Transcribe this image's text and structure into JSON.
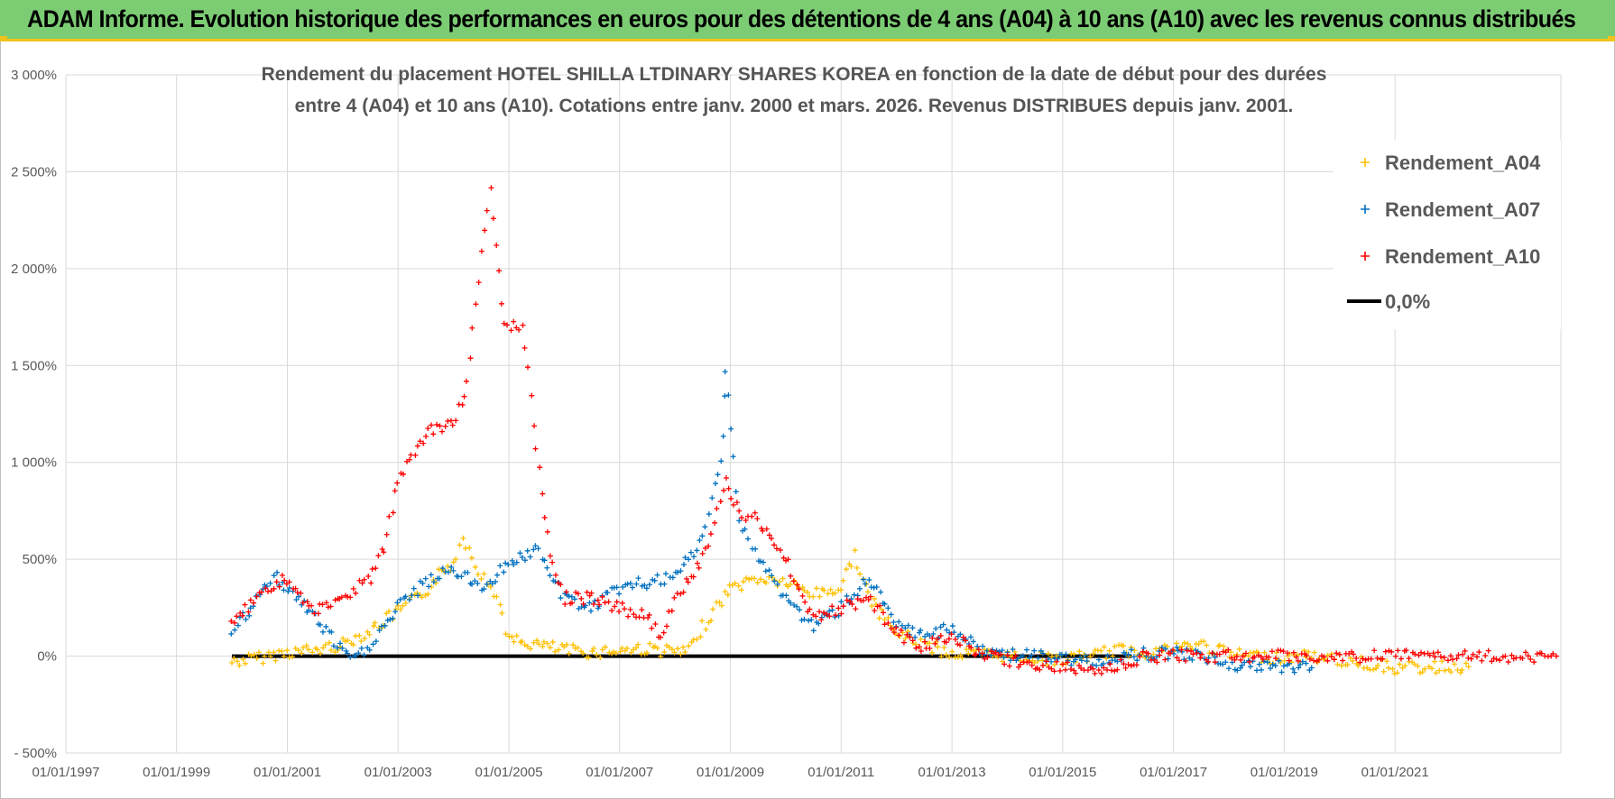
{
  "header": {
    "title": "ADAM Informe. Evolution historique des performances en euros pour des détentions de 4 ans (A04) à 10 ans (A10) avec les revenus connus distribués"
  },
  "colors": {
    "header_bg": "#7ccc74",
    "header_accent": "#f2c21a",
    "A04": "#ffc000",
    "A07": "#0070c0",
    "A10": "#ff0000",
    "zero": "#000000",
    "grid": "#d9d9d9"
  },
  "chart_data": {
    "type": "scatter",
    "title_lines": [
      "Rendement du placement HOTEL SHILLA LTDINARY SHARES KOREA en fonction de la date de début pour des durées",
      "entre 4 (A04) et 10 ans (A10).  Cotations entre janv. 2000 et mars. 2026.  Revenus DISTRIBUES depuis janv. 2001."
    ],
    "x_axis": {
      "type": "date",
      "range": [
        "1997-01-01",
        "2023-12-31"
      ],
      "tick_labels": [
        "01/01/1997",
        "01/01/1999",
        "01/01/2001",
        "01/01/2003",
        "01/01/2005",
        "01/01/2007",
        "01/01/2009",
        "01/01/2011",
        "01/01/2013",
        "01/01/2015",
        "01/01/2017",
        "01/01/2019",
        "01/01/2021"
      ]
    },
    "y_axis": {
      "unit": "%",
      "range": [
        -500,
        3000
      ],
      "tick_values": [
        -500,
        0,
        500,
        1000,
        1500,
        2000,
        2500,
        3000
      ],
      "tick_labels": [
        "- 500%",
        "0%",
        "500%",
        "1 000%",
        "1 500%",
        "2 000%",
        "2 500%",
        "3 000%"
      ]
    },
    "grid": true,
    "legend_position": "top-right",
    "series": [
      {
        "name": "Rendement_A04",
        "marker": "+",
        "color": "#ffc000",
        "points": [
          [
            "2000-01-01",
            -30
          ],
          [
            "2000-07-01",
            -10
          ],
          [
            "2001-01-01",
            20
          ],
          [
            "2001-07-01",
            30
          ],
          [
            "2002-01-01",
            60
          ],
          [
            "2002-07-01",
            130
          ],
          [
            "2003-01-01",
            230
          ],
          [
            "2003-07-01",
            330
          ],
          [
            "2003-10-01",
            420
          ],
          [
            "2004-01-01",
            480
          ],
          [
            "2004-03-01",
            620
          ],
          [
            "2004-07-01",
            420
          ],
          [
            "2004-11-01",
            280
          ],
          [
            "2005-01-01",
            80
          ],
          [
            "2005-07-01",
            60
          ],
          [
            "2006-01-01",
            30
          ],
          [
            "2006-07-01",
            20
          ],
          [
            "2007-01-01",
            30
          ],
          [
            "2007-07-01",
            40
          ],
          [
            "2008-01-01",
            20
          ],
          [
            "2008-04-01",
            20
          ],
          [
            "2008-07-01",
            150
          ],
          [
            "2009-01-01",
            350
          ],
          [
            "2009-07-01",
            400
          ],
          [
            "2010-01-01",
            380
          ],
          [
            "2010-07-01",
            320
          ],
          [
            "2011-01-01",
            350
          ],
          [
            "2011-04-01",
            530
          ],
          [
            "2011-07-01",
            300
          ],
          [
            "2012-01-01",
            120
          ],
          [
            "2012-07-01",
            60
          ],
          [
            "2013-01-01",
            10
          ],
          [
            "2013-07-01",
            10
          ],
          [
            "2014-01-01",
            0
          ],
          [
            "2014-07-01",
            -10
          ],
          [
            "2015-01-01",
            -20
          ],
          [
            "2015-07-01",
            0
          ],
          [
            "2016-01-01",
            30
          ],
          [
            "2016-07-01",
            20
          ],
          [
            "2017-01-01",
            40
          ],
          [
            "2017-07-01",
            60
          ],
          [
            "2018-01-01",
            10
          ],
          [
            "2018-07-01",
            0
          ],
          [
            "2019-01-01",
            -10
          ],
          [
            "2019-07-01",
            0
          ],
          [
            "2020-01-01",
            -20
          ],
          [
            "2020-07-01",
            -40
          ],
          [
            "2021-01-01",
            -60
          ],
          [
            "2021-07-01",
            -60
          ],
          [
            "2022-05-01",
            -55
          ]
        ]
      },
      {
        "name": "Rendement_A07",
        "marker": "+",
        "color": "#0070c0",
        "points": [
          [
            "2000-01-01",
            120
          ],
          [
            "2000-07-01",
            300
          ],
          [
            "2000-10-01",
            420
          ],
          [
            "2001-01-01",
            350
          ],
          [
            "2001-07-01",
            200
          ],
          [
            "2002-01-01",
            20
          ],
          [
            "2002-04-01",
            -20
          ],
          [
            "2002-07-01",
            60
          ],
          [
            "2003-01-01",
            250
          ],
          [
            "2003-07-01",
            380
          ],
          [
            "2004-01-01",
            450
          ],
          [
            "2004-07-01",
            350
          ],
          [
            "2005-01-01",
            480
          ],
          [
            "2005-07-01",
            550
          ],
          [
            "2006-01-01",
            300
          ],
          [
            "2006-07-01",
            250
          ],
          [
            "2007-01-01",
            350
          ],
          [
            "2007-07-01",
            380
          ],
          [
            "2008-01-01",
            400
          ],
          [
            "2008-07-01",
            600
          ],
          [
            "2008-11-01",
            1000
          ],
          [
            "2008-12-01",
            1500
          ],
          [
            "2009-03-01",
            700
          ],
          [
            "2009-07-01",
            500
          ],
          [
            "2010-01-01",
            300
          ],
          [
            "2010-07-01",
            150
          ],
          [
            "2011-01-01",
            250
          ],
          [
            "2011-07-01",
            400
          ],
          [
            "2012-01-01",
            150
          ],
          [
            "2012-07-01",
            100
          ],
          [
            "2013-01-01",
            150
          ],
          [
            "2013-07-01",
            30
          ],
          [
            "2014-01-01",
            10
          ],
          [
            "2014-07-01",
            0
          ],
          [
            "2015-01-01",
            -20
          ],
          [
            "2015-07-01",
            -30
          ],
          [
            "2016-01-01",
            0
          ],
          [
            "2016-07-01",
            10
          ],
          [
            "2017-01-01",
            20
          ],
          [
            "2017-07-01",
            0
          ],
          [
            "2018-01-01",
            -40
          ],
          [
            "2018-07-01",
            -60
          ],
          [
            "2019-01-01",
            -50
          ],
          [
            "2019-07-01",
            -60
          ]
        ]
      },
      {
        "name": "Rendement_A10",
        "marker": "+",
        "color": "#ff0000",
        "points": [
          [
            "2000-01-01",
            150
          ],
          [
            "2000-07-01",
            330
          ],
          [
            "2001-01-01",
            400
          ],
          [
            "2001-07-01",
            220
          ],
          [
            "2002-01-01",
            300
          ],
          [
            "2002-07-01",
            400
          ],
          [
            "2002-10-01",
            550
          ],
          [
            "2003-01-01",
            900
          ],
          [
            "2003-07-01",
            1150
          ],
          [
            "2004-01-01",
            1200
          ],
          [
            "2004-04-01",
            1400
          ],
          [
            "2004-07-01",
            2100
          ],
          [
            "2004-09-01",
            2400
          ],
          [
            "2004-12-01",
            1700
          ],
          [
            "2005-04-01",
            1700
          ],
          [
            "2005-07-01",
            1100
          ],
          [
            "2005-10-01",
            500
          ],
          [
            "2006-01-01",
            300
          ],
          [
            "2006-07-01",
            300
          ],
          [
            "2007-01-01",
            250
          ],
          [
            "2007-07-01",
            200
          ],
          [
            "2007-10-01",
            100
          ],
          [
            "2008-01-01",
            300
          ],
          [
            "2008-07-01",
            500
          ],
          [
            "2008-12-01",
            900
          ],
          [
            "2009-03-01",
            750
          ],
          [
            "2009-07-01",
            700
          ],
          [
            "2010-01-01",
            500
          ],
          [
            "2010-07-01",
            200
          ],
          [
            "2011-01-01",
            250
          ],
          [
            "2011-07-01",
            300
          ],
          [
            "2012-01-01",
            120
          ],
          [
            "2012-07-01",
            50
          ],
          [
            "2013-01-01",
            100
          ],
          [
            "2013-07-01",
            20
          ],
          [
            "2014-01-01",
            -20
          ],
          [
            "2014-07-01",
            -40
          ],
          [
            "2015-01-01",
            -60
          ],
          [
            "2015-07-01",
            -70
          ],
          [
            "2016-01-01",
            -50
          ],
          [
            "2016-07-01",
            0
          ],
          [
            "2017-01-01",
            0
          ],
          [
            "2018-01-01",
            0
          ],
          [
            "2019-01-01",
            0
          ],
          [
            "2020-01-01",
            0
          ],
          [
            "2021-01-01",
            0
          ],
          [
            "2022-01-01",
            0
          ],
          [
            "2023-01-01",
            0
          ],
          [
            "2023-12-01",
            0
          ]
        ]
      }
    ],
    "reference_line": {
      "name": "0,0%",
      "value": 0,
      "from": "2000-01-01",
      "to": "2016-04-01",
      "color": "#000000"
    }
  }
}
